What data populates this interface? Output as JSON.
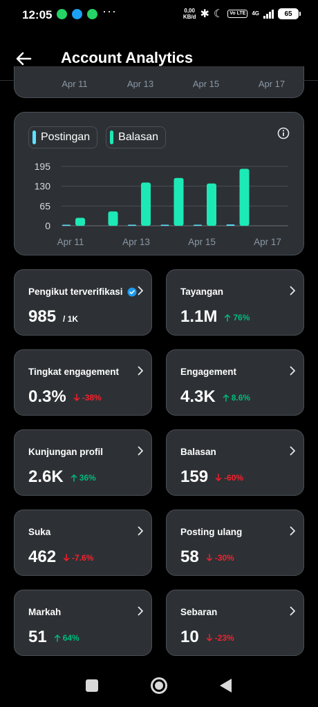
{
  "statusbar": {
    "time": "12:05",
    "app_icons": [
      "whatsapp-icon",
      "app-icon",
      "phone-icon"
    ],
    "more": "···",
    "net_speed": "0,00",
    "net_unit": "KB/d",
    "volte": "Vo LTE",
    "network": "4G",
    "battery": "65"
  },
  "header": {
    "title": "Account Analytics",
    "back_icon": "back-arrow-icon"
  },
  "prev_chart": {
    "ticks": [
      "Apr 11",
      "Apr 13",
      "Apr 15",
      "Apr 17"
    ]
  },
  "chart_data": {
    "type": "bar",
    "categories": [
      "Apr 11",
      "Apr 12",
      "Apr 13",
      "Apr 14",
      "Apr 15",
      "Apr 16",
      "Apr 17"
    ],
    "x_tick_labels": [
      "Apr 11",
      "Apr 13",
      "Apr 15",
      "Apr 17"
    ],
    "series": [
      {
        "name": "Postingan",
        "color": "#5ce1ff",
        "values": [
          1,
          0,
          1,
          1,
          1,
          2,
          0
        ]
      },
      {
        "name": "Balasan",
        "color": "#1de9b6",
        "values": [
          26,
          47,
          142,
          157,
          139,
          187,
          0
        ]
      }
    ],
    "y_ticks": [
      "0",
      "65",
      "130",
      "195"
    ],
    "ylim": [
      0,
      195
    ],
    "grid": true,
    "info_icon": "info-icon"
  },
  "metrics": [
    {
      "label": "Pengikut terverifikasi",
      "value": "985",
      "sub": "/ 1K",
      "verified": true
    },
    {
      "label": "Tayangan",
      "value": "1.1M",
      "delta": "76%",
      "direction": "up"
    },
    {
      "label": "Tingkat engagement",
      "value": "0.3%",
      "delta": "-38%",
      "direction": "down"
    },
    {
      "label": "Engagement",
      "value": "4.3K",
      "delta": "8.6%",
      "direction": "up"
    },
    {
      "label": "Kunjungan profil",
      "value": "2.6K",
      "delta": "36%",
      "direction": "up"
    },
    {
      "label": "Balasan",
      "value": "159",
      "delta": "-60%",
      "direction": "down"
    },
    {
      "label": "Suka",
      "value": "462",
      "delta": "-7.6%",
      "direction": "down"
    },
    {
      "label": "Posting ulang",
      "value": "58",
      "delta": "-30%",
      "direction": "down"
    },
    {
      "label": "Markah",
      "value": "51",
      "delta": "64%",
      "direction": "up"
    },
    {
      "label": "Sebaran",
      "value": "10",
      "delta": "-23%",
      "direction": "down"
    }
  ],
  "colors": {
    "up": "#00ba7c",
    "down": "#f4212e",
    "verified": "#1d9bf0"
  },
  "navbar": {
    "items": [
      "recents-button",
      "home-button",
      "back-button"
    ]
  }
}
